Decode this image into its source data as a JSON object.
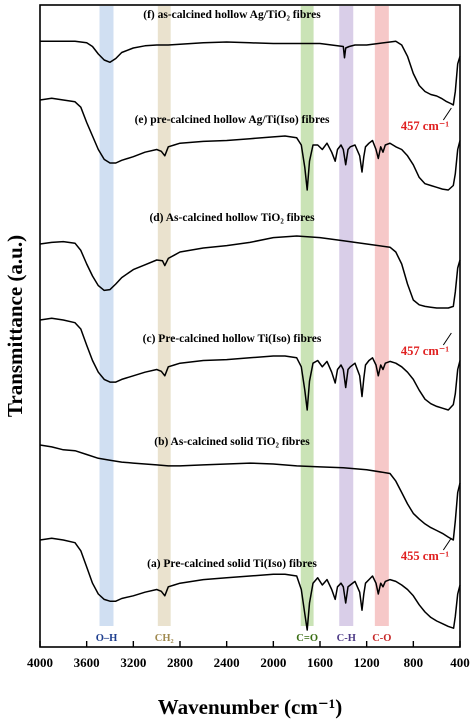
{
  "chart_data": {
    "type": "line",
    "xlabel": "Wavenumber (cm⁻¹)",
    "ylabel": "Transmittance (a.u.)",
    "xlim": [
      4000,
      400
    ],
    "x_reversed": true,
    "x_ticks": [
      4000,
      3600,
      3200,
      2800,
      2400,
      2000,
      1600,
      1200,
      800,
      400
    ],
    "grid": false,
    "legend": "none",
    "bands": [
      {
        "label": "O–H",
        "center": 3430,
        "width": 120,
        "color": "#a9c4e8"
      },
      {
        "label": "CH₂",
        "center": 2935,
        "width": 110,
        "color": "#d8cba6"
      },
      {
        "label": "C=O",
        "center": 1710,
        "width": 110,
        "color": "#9fcc7a"
      },
      {
        "label": "C-H",
        "center": 1375,
        "width": 120,
        "color": "#b9a6d6"
      },
      {
        "label": "C-O",
        "center": 1070,
        "width": 120,
        "color": "#ef9a9a"
      }
    ],
    "series": [
      {
        "name": "(f) as-calcined hollow Ag/TiO₂ fibres",
        "x": [
          4000,
          3900,
          3800,
          3700,
          3600,
          3550,
          3500,
          3450,
          3400,
          3350,
          3300,
          3200,
          3100,
          3000,
          2900,
          2800,
          2600,
          2400,
          2200,
          2000,
          1800,
          1600,
          1400,
          1390,
          1380,
          1350,
          1300,
          1200,
          1100,
          1000,
          950,
          900,
          850,
          800,
          750,
          700,
          650,
          600,
          560,
          520,
          480,
          457,
          440,
          420,
          400
        ],
        "y": [
          0.15,
          0.15,
          0.15,
          0.15,
          0.17,
          0.22,
          0.32,
          0.4,
          0.43,
          0.38,
          0.3,
          0.24,
          0.21,
          0.2,
          0.2,
          0.19,
          0.17,
          0.16,
          0.17,
          0.18,
          0.18,
          0.18,
          0.22,
          0.37,
          0.24,
          0.22,
          0.2,
          0.2,
          0.18,
          0.16,
          0.15,
          0.2,
          0.35,
          0.58,
          0.74,
          0.82,
          0.86,
          0.88,
          0.91,
          0.95,
          0.98,
          1.0,
          0.82,
          0.45,
          0.35
        ]
      },
      {
        "name": "(e) pre-calcined hollow Ag/Ti(Iso) fibres",
        "x": [
          4000,
          3900,
          3800,
          3700,
          3650,
          3600,
          3550,
          3500,
          3450,
          3400,
          3350,
          3300,
          3200,
          3100,
          3000,
          2960,
          2930,
          2900,
          2850,
          2800,
          2600,
          2400,
          2200,
          2000,
          1900,
          1800,
          1760,
          1730,
          1710,
          1690,
          1660,
          1620,
          1580,
          1540,
          1500,
          1470,
          1450,
          1420,
          1400,
          1380,
          1360,
          1340,
          1300,
          1260,
          1240,
          1225,
          1210,
          1180,
          1150,
          1120,
          1100,
          1080,
          1060,
          1040,
          1000,
          950,
          900,
          850,
          800,
          750,
          700,
          650,
          600,
          550,
          500,
          457,
          440,
          420,
          400
        ],
        "y": [
          0.0,
          -0.02,
          0.0,
          0.02,
          0.08,
          0.25,
          0.4,
          0.55,
          0.66,
          0.7,
          0.7,
          0.67,
          0.63,
          0.58,
          0.55,
          0.57,
          0.62,
          0.52,
          0.5,
          0.48,
          0.46,
          0.45,
          0.43,
          0.41,
          0.4,
          0.42,
          0.5,
          0.75,
          1.0,
          0.68,
          0.5,
          0.5,
          0.55,
          0.48,
          0.58,
          0.68,
          0.55,
          0.5,
          0.55,
          0.72,
          0.55,
          0.52,
          0.5,
          0.62,
          0.8,
          0.63,
          0.52,
          0.48,
          0.45,
          0.55,
          0.65,
          0.52,
          0.58,
          0.5,
          0.48,
          0.52,
          0.55,
          0.62,
          0.72,
          0.86,
          0.93,
          0.95,
          0.97,
          0.99,
          1.0,
          0.95,
          0.82,
          0.55,
          0.45
        ]
      },
      {
        "name": "(d) As-calcined hollow TiO₂ fibres",
        "x": [
          4000,
          3900,
          3800,
          3700,
          3650,
          3600,
          3550,
          3500,
          3450,
          3400,
          3350,
          3300,
          3200,
          3100,
          3000,
          2950,
          2930,
          2900,
          2850,
          2800,
          2600,
          2400,
          2200,
          2000,
          1800,
          1600,
          1400,
          1200,
          1000,
          950,
          900,
          850,
          800,
          750,
          700,
          650,
          600,
          550,
          500,
          457,
          440,
          420,
          400
        ],
        "y": [
          0.2,
          0.18,
          0.17,
          0.19,
          0.28,
          0.45,
          0.6,
          0.72,
          0.78,
          0.77,
          0.7,
          0.62,
          0.52,
          0.46,
          0.4,
          0.41,
          0.47,
          0.38,
          0.34,
          0.3,
          0.25,
          0.22,
          0.18,
          0.12,
          0.1,
          0.12,
          0.16,
          0.2,
          0.24,
          0.3,
          0.45,
          0.7,
          0.9,
          0.96,
          0.98,
          0.99,
          1.0,
          1.0,
          1.0,
          0.98,
          0.8,
          0.5,
          0.4
        ]
      },
      {
        "name": "(c) Pre-calcined hollow Ti(Iso) fibres",
        "x": [
          4000,
          3900,
          3800,
          3700,
          3650,
          3600,
          3550,
          3500,
          3450,
          3400,
          3350,
          3300,
          3200,
          3100,
          3000,
          2960,
          2930,
          2900,
          2850,
          2800,
          2600,
          2400,
          2200,
          2000,
          1900,
          1800,
          1760,
          1730,
          1710,
          1690,
          1660,
          1620,
          1580,
          1540,
          1500,
          1470,
          1450,
          1420,
          1400,
          1380,
          1360,
          1340,
          1300,
          1260,
          1240,
          1225,
          1210,
          1180,
          1150,
          1120,
          1100,
          1080,
          1060,
          1040,
          1000,
          950,
          900,
          850,
          800,
          750,
          700,
          650,
          600,
          550,
          500,
          457,
          440,
          420,
          400
        ],
        "y": [
          0.0,
          -0.02,
          0.0,
          0.03,
          0.1,
          0.28,
          0.45,
          0.58,
          0.66,
          0.69,
          0.69,
          0.66,
          0.62,
          0.58,
          0.55,
          0.57,
          0.62,
          0.52,
          0.5,
          0.48,
          0.45,
          0.44,
          0.42,
          0.4,
          0.4,
          0.42,
          0.52,
          0.78,
          1.0,
          0.68,
          0.48,
          0.45,
          0.52,
          0.46,
          0.58,
          0.7,
          0.55,
          0.5,
          0.55,
          0.75,
          0.55,
          0.52,
          0.48,
          0.62,
          0.85,
          0.65,
          0.5,
          0.45,
          0.42,
          0.5,
          0.62,
          0.5,
          0.55,
          0.48,
          0.46,
          0.48,
          0.52,
          0.58,
          0.66,
          0.78,
          0.88,
          0.93,
          0.96,
          0.98,
          1.0,
          0.94,
          0.82,
          0.55,
          0.45
        ]
      },
      {
        "name": "(b) As-calcined solid TiO₂ fibres",
        "x": [
          4000,
          3900,
          3800,
          3700,
          3600,
          3500,
          3400,
          3300,
          3200,
          3100,
          3000,
          2900,
          2800,
          2600,
          2400,
          2200,
          2000,
          1800,
          1600,
          1400,
          1200,
          1000,
          950,
          900,
          850,
          800,
          750,
          700,
          650,
          600,
          550,
          500,
          457,
          440,
          420,
          400
        ],
        "y": [
          0.0,
          0.02,
          0.05,
          0.06,
          0.1,
          0.14,
          0.16,
          0.18,
          0.19,
          0.2,
          0.21,
          0.22,
          0.22,
          0.21,
          0.2,
          0.19,
          0.2,
          0.22,
          0.23,
          0.24,
          0.26,
          0.3,
          0.38,
          0.5,
          0.62,
          0.72,
          0.78,
          0.83,
          0.87,
          0.9,
          0.93,
          0.97,
          1.0,
          0.8,
          0.5,
          0.4
        ]
      },
      {
        "name": "(a) Pre-calcined solid Ti(Iso) fibres",
        "x": [
          4000,
          3900,
          3800,
          3700,
          3650,
          3600,
          3550,
          3500,
          3450,
          3400,
          3350,
          3300,
          3200,
          3100,
          3000,
          2960,
          2930,
          2900,
          2850,
          2800,
          2600,
          2400,
          2200,
          2000,
          1900,
          1800,
          1760,
          1730,
          1710,
          1690,
          1660,
          1620,
          1580,
          1540,
          1500,
          1470,
          1450,
          1420,
          1400,
          1380,
          1360,
          1340,
          1300,
          1260,
          1240,
          1225,
          1210,
          1180,
          1150,
          1120,
          1100,
          1080,
          1060,
          1040,
          1000,
          950,
          900,
          850,
          800,
          750,
          700,
          650,
          600,
          550,
          500,
          455,
          440,
          420,
          400
        ],
        "y": [
          0.0,
          -0.02,
          0.0,
          0.03,
          0.12,
          0.3,
          0.48,
          0.6,
          0.66,
          0.68,
          0.68,
          0.65,
          0.62,
          0.58,
          0.55,
          0.57,
          0.62,
          0.52,
          0.5,
          0.48,
          0.44,
          0.42,
          0.4,
          0.38,
          0.38,
          0.4,
          0.55,
          0.82,
          1.0,
          0.7,
          0.48,
          0.42,
          0.5,
          0.44,
          0.55,
          0.66,
          0.52,
          0.48,
          0.52,
          0.7,
          0.52,
          0.5,
          0.46,
          0.58,
          0.78,
          0.6,
          0.48,
          0.44,
          0.4,
          0.48,
          0.6,
          0.48,
          0.52,
          0.46,
          0.44,
          0.46,
          0.5,
          0.55,
          0.62,
          0.72,
          0.8,
          0.86,
          0.9,
          0.93,
          0.96,
          0.98,
          0.85,
          0.6,
          0.5
        ]
      }
    ],
    "annotations": [
      {
        "text": "457 cm⁻¹",
        "series": 0
      },
      {
        "text": "457 cm⁻¹",
        "series": 2
      },
      {
        "text": "455 cm⁻¹",
        "series": 4
      }
    ]
  }
}
